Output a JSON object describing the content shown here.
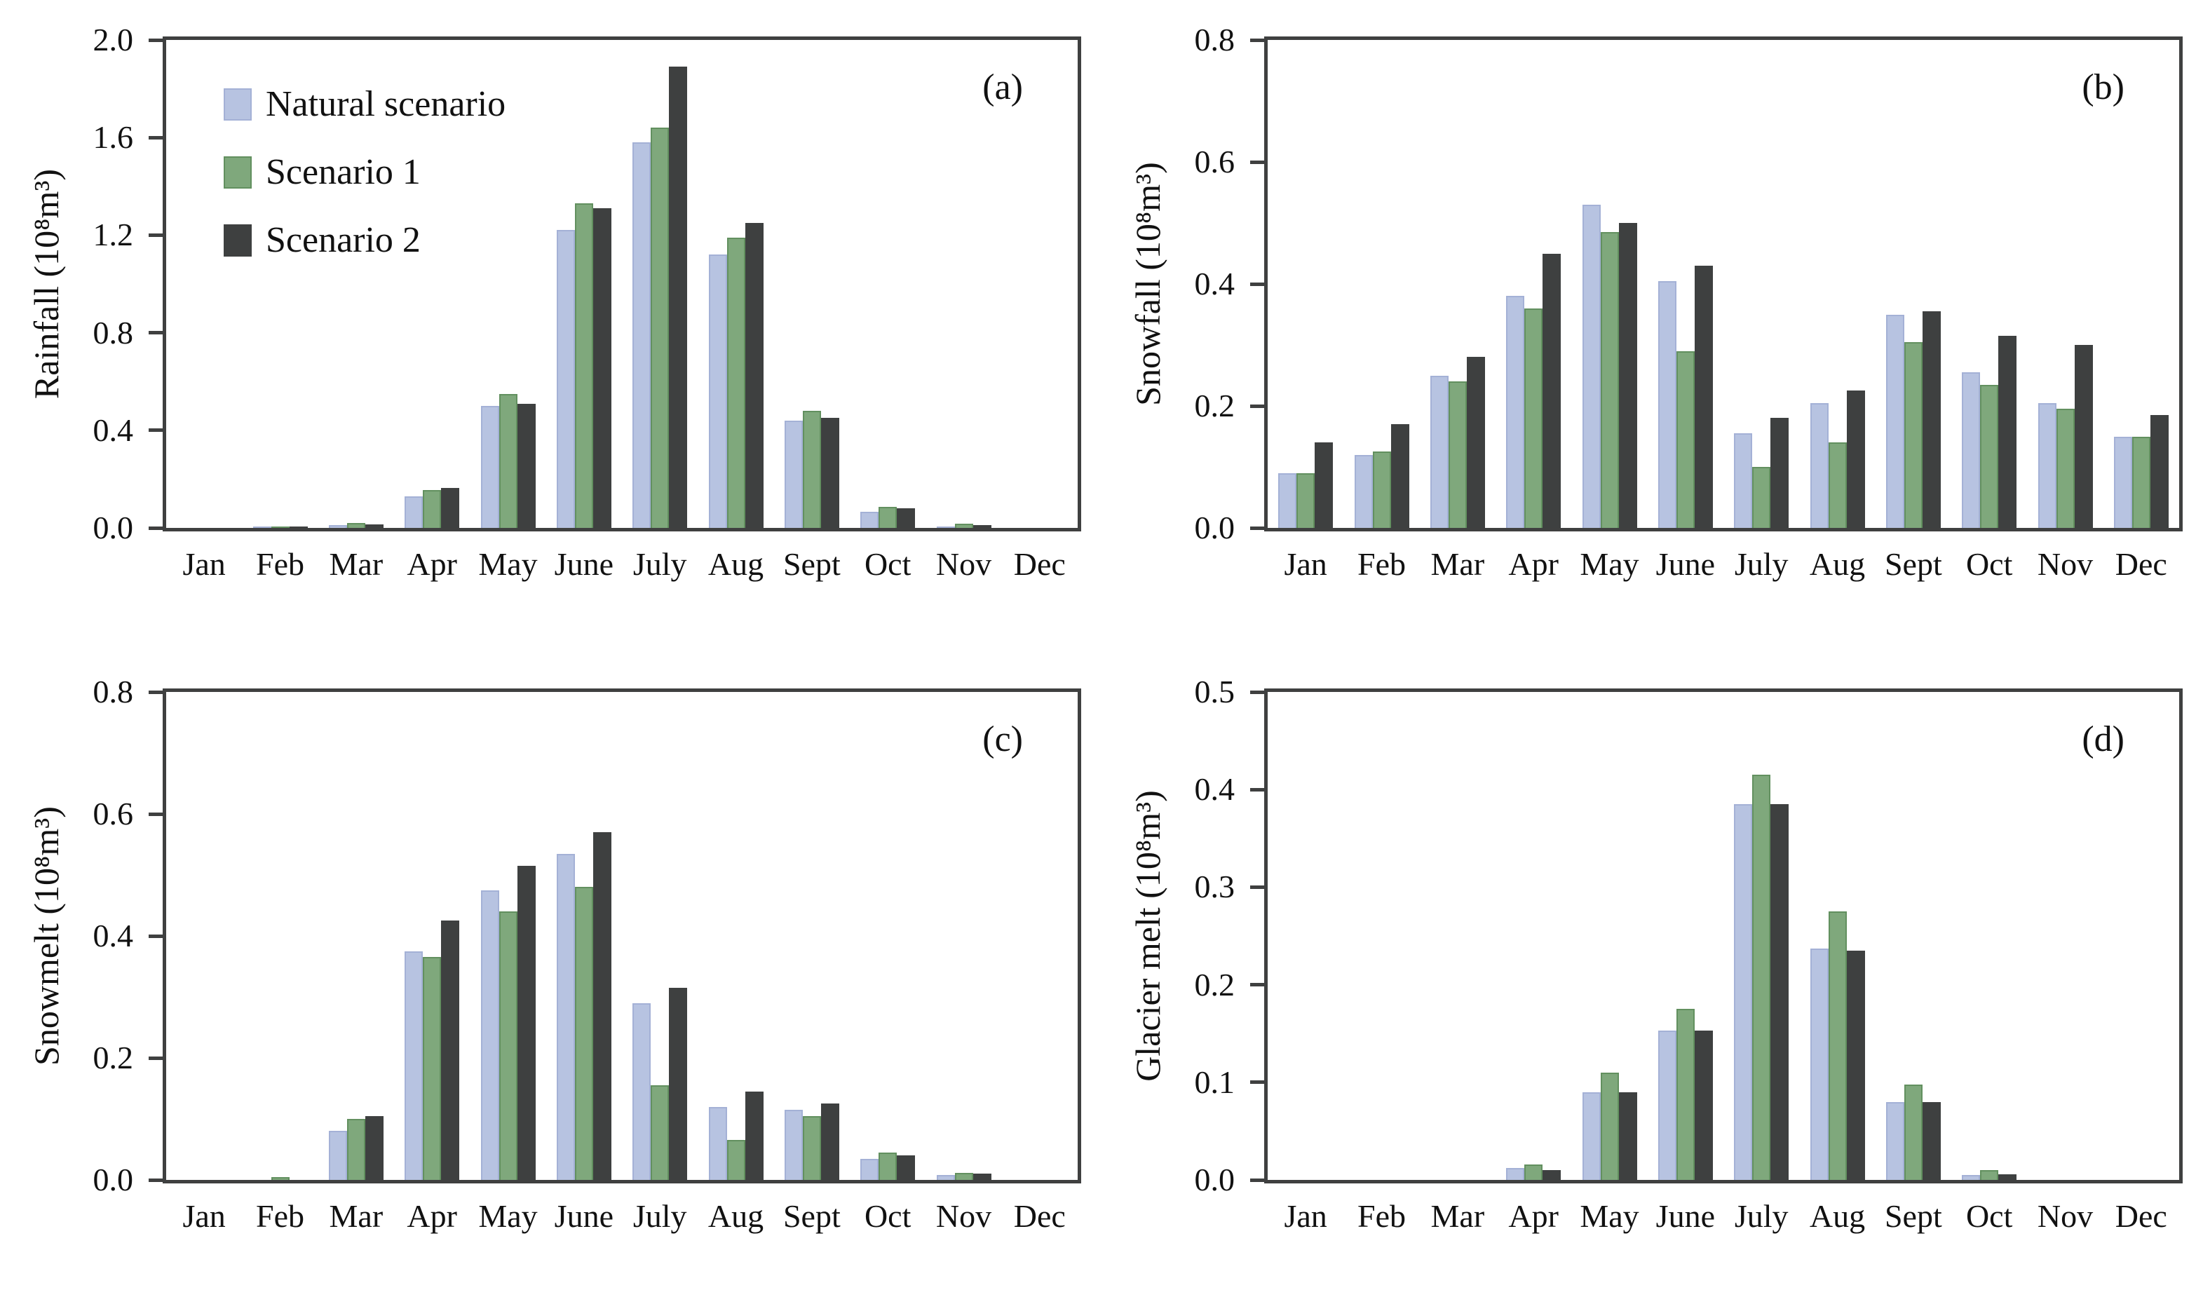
{
  "figure": {
    "colors": {
      "natural": "#b7c3e1",
      "natural_border": "#a4b1d6",
      "scenario1": "#7fa87c",
      "scenario1_border": "#62905f",
      "scenario2": "#3e4040",
      "scenario2_border": "#3e4040",
      "axis": "#3f4040"
    },
    "legend": [
      {
        "label": "Natural scenario",
        "color_key": "natural"
      },
      {
        "label": "Scenario 1",
        "color_key": "scenario1"
      },
      {
        "label": "Scenario 2",
        "color_key": "scenario2"
      }
    ]
  },
  "chart_data": [
    {
      "type": "bar",
      "panel_label": "(a)",
      "ylabel": "Rainfall (10⁸m³)",
      "xlabel": "",
      "ylim": [
        0,
        2.0
      ],
      "yticks": [
        "2.0",
        "1.6",
        "1.2",
        "0.8",
        "0.4",
        "0.0"
      ],
      "grid": false,
      "legend_position": "inside top-left",
      "categories": [
        "Jan",
        "Feb",
        "Mar",
        "Apr",
        "May",
        "June",
        "July",
        "Aug",
        "Sept",
        "Oct",
        "Nov",
        "Dec"
      ],
      "series": [
        {
          "name": "Natural scenario",
          "values": [
            0,
            0.003,
            0.012,
            0.13,
            0.5,
            1.22,
            1.58,
            1.12,
            0.44,
            0.065,
            0.006,
            0
          ]
        },
        {
          "name": "Scenario 1",
          "values": [
            0,
            0.006,
            0.02,
            0.155,
            0.55,
            1.33,
            1.64,
            1.19,
            0.48,
            0.085,
            0.018,
            0
          ]
        },
        {
          "name": "Scenario 2",
          "values": [
            0,
            0.004,
            0.013,
            0.165,
            0.51,
            1.31,
            1.89,
            1.25,
            0.45,
            0.08,
            0.012,
            0
          ]
        }
      ]
    },
    {
      "type": "bar",
      "panel_label": "(b)",
      "ylabel": "Snowfall (10⁸m³)",
      "xlabel": "",
      "ylim": [
        0,
        0.8
      ],
      "yticks": [
        "0.8",
        "0.6",
        "0.4",
        "0.2",
        "0.0"
      ],
      "grid": false,
      "legend_position": "none",
      "categories": [
        "Jan",
        "Feb",
        "Mar",
        "Apr",
        "May",
        "June",
        "July",
        "Aug",
        "Sept",
        "Oct",
        "Nov",
        "Dec"
      ],
      "series": [
        {
          "name": "Natural scenario",
          "values": [
            0.09,
            0.12,
            0.25,
            0.38,
            0.53,
            0.405,
            0.155,
            0.205,
            0.35,
            0.255,
            0.205,
            0.15
          ]
        },
        {
          "name": "Scenario 1",
          "values": [
            0.09,
            0.125,
            0.24,
            0.36,
            0.485,
            0.29,
            0.1,
            0.14,
            0.305,
            0.235,
            0.195,
            0.15
          ]
        },
        {
          "name": "Scenario 2",
          "values": [
            0.14,
            0.17,
            0.28,
            0.45,
            0.5,
            0.43,
            0.18,
            0.225,
            0.355,
            0.315,
            0.3,
            0.185
          ]
        }
      ]
    },
    {
      "type": "bar",
      "panel_label": "(c)",
      "ylabel": "Snowmelt (10⁸m³)",
      "xlabel": "",
      "ylim": [
        0,
        0.8
      ],
      "yticks": [
        "0.8",
        "0.6",
        "0.4",
        "0.2",
        "0.0"
      ],
      "grid": false,
      "legend_position": "none",
      "categories": [
        "Jan",
        "Feb",
        "Mar",
        "Apr",
        "May",
        "June",
        "July",
        "Aug",
        "Sept",
        "Oct",
        "Nov",
        "Dec"
      ],
      "series": [
        {
          "name": "Natural scenario",
          "values": [
            0,
            0.0,
            0.08,
            0.375,
            0.475,
            0.535,
            0.29,
            0.12,
            0.115,
            0.035,
            0.008,
            0
          ]
        },
        {
          "name": "Scenario 1",
          "values": [
            0,
            0.005,
            0.1,
            0.365,
            0.44,
            0.48,
            0.155,
            0.065,
            0.105,
            0.045,
            0.012,
            0
          ]
        },
        {
          "name": "Scenario 2",
          "values": [
            0,
            0.0,
            0.105,
            0.425,
            0.515,
            0.57,
            0.315,
            0.145,
            0.125,
            0.04,
            0.01,
            0
          ]
        }
      ]
    },
    {
      "type": "bar",
      "panel_label": "(d)",
      "ylabel": "Glacier melt (10⁸m³)",
      "xlabel": "",
      "ylim": [
        0,
        0.5
      ],
      "yticks": [
        "0.5",
        "0.4",
        "0.3",
        "0.2",
        "0.1",
        "0.0"
      ],
      "grid": false,
      "legend_position": "none",
      "categories": [
        "Jan",
        "Feb",
        "Mar",
        "Apr",
        "May",
        "June",
        "July",
        "Aug",
        "Sept",
        "Oct",
        "Nov",
        "Dec"
      ],
      "series": [
        {
          "name": "Natural scenario",
          "values": [
            0,
            0,
            0,
            0.012,
            0.09,
            0.153,
            0.385,
            0.237,
            0.08,
            0.005,
            0,
            0
          ]
        },
        {
          "name": "Scenario 1",
          "values": [
            0,
            0,
            0,
            0.016,
            0.11,
            0.175,
            0.415,
            0.275,
            0.098,
            0.01,
            0,
            0
          ]
        },
        {
          "name": "Scenario 2",
          "values": [
            0,
            0,
            0,
            0.01,
            0.09,
            0.153,
            0.385,
            0.235,
            0.08,
            0.006,
            0,
            0
          ]
        }
      ]
    }
  ]
}
